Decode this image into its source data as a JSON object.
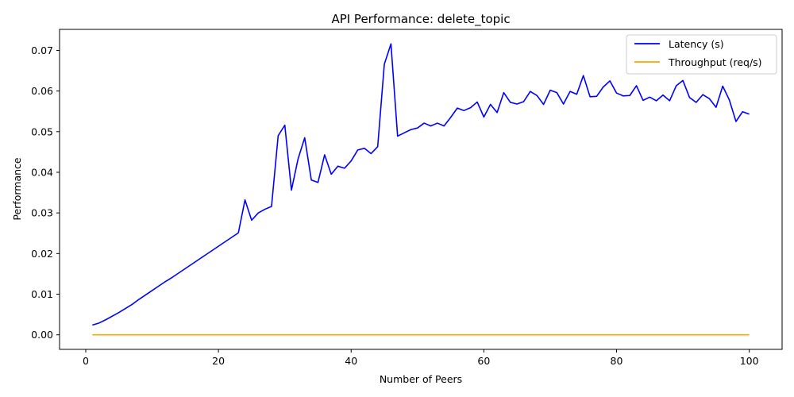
{
  "chart_data": {
    "type": "line",
    "title": "API Performance: delete_topic",
    "xlabel": "Number of Peers",
    "ylabel": "Performance",
    "xlim": [
      -3.95,
      104.95
    ],
    "ylim": [
      -0.00358,
      0.07517
    ],
    "xticks": [
      0,
      20,
      40,
      60,
      80,
      100
    ],
    "xtick_labels": [
      "0",
      "20",
      "40",
      "60",
      "80",
      "100"
    ],
    "yticks": [
      0.0,
      0.01,
      0.02,
      0.03,
      0.04,
      0.05,
      0.06,
      0.07
    ],
    "ytick_labels": [
      "0.00",
      "0.01",
      "0.02",
      "0.03",
      "0.04",
      "0.05",
      "0.06",
      "0.07"
    ],
    "grid": false,
    "legend": "top-right",
    "x": [
      1,
      2,
      3,
      4,
      5,
      6,
      7,
      8,
      9,
      10,
      11,
      12,
      13,
      14,
      15,
      16,
      17,
      18,
      19,
      20,
      21,
      22,
      23,
      24,
      25,
      26,
      27,
      28,
      29,
      30,
      31,
      32,
      33,
      34,
      35,
      36,
      37,
      38,
      39,
      40,
      41,
      42,
      43,
      44,
      45,
      46,
      47,
      48,
      49,
      50,
      51,
      52,
      53,
      54,
      55,
      56,
      57,
      58,
      59,
      60,
      61,
      62,
      63,
      64,
      65,
      66,
      67,
      68,
      69,
      70,
      71,
      72,
      73,
      74,
      75,
      76,
      77,
      78,
      79,
      80,
      81,
      82,
      83,
      84,
      85,
      86,
      87,
      88,
      89,
      90,
      91,
      92,
      93,
      94,
      95,
      96,
      97,
      98,
      99,
      100
    ],
    "series": [
      {
        "name": "Latency (s)",
        "color": "#0000ff",
        "values": [
          0.0024,
          0.0029,
          0.0037,
          0.0046,
          0.0055,
          0.0065,
          0.0075,
          0.0087,
          0.0098,
          0.0109,
          0.012,
          0.0131,
          0.0141,
          0.0152,
          0.0163,
          0.0174,
          0.0185,
          0.0196,
          0.0207,
          0.0218,
          0.0229,
          0.024,
          0.0251,
          0.0332,
          0.0282,
          0.03,
          0.0309,
          0.0316,
          0.049,
          0.0516,
          0.0356,
          0.0433,
          0.0485,
          0.0381,
          0.0375,
          0.0443,
          0.0395,
          0.0415,
          0.041,
          0.0428,
          0.0455,
          0.0459,
          0.0446,
          0.0463,
          0.0666,
          0.0716,
          0.0489,
          0.0497,
          0.0505,
          0.0509,
          0.0521,
          0.0514,
          0.0521,
          0.0514,
          0.0535,
          0.0558,
          0.0552,
          0.0559,
          0.0573,
          0.0536,
          0.0567,
          0.0547,
          0.0596,
          0.0572,
          0.0568,
          0.0574,
          0.0599,
          0.0589,
          0.0567,
          0.0602,
          0.0596,
          0.0568,
          0.0599,
          0.0592,
          0.0638,
          0.0586,
          0.0587,
          0.061,
          0.0625,
          0.0595,
          0.0588,
          0.0589,
          0.0613,
          0.0577,
          0.0585,
          0.0576,
          0.059,
          0.0576,
          0.0613,
          0.0626,
          0.0584,
          0.0572,
          0.0591,
          0.0581,
          0.056,
          0.0612,
          0.0578,
          0.0525,
          0.0549,
          0.0543
        ]
      },
      {
        "name": "Throughput (req/s)",
        "color": "#ffa500",
        "values": [
          0,
          0,
          0,
          0,
          0,
          0,
          0,
          0,
          0,
          0,
          0,
          0,
          0,
          0,
          0,
          0,
          0,
          0,
          0,
          0,
          0,
          0,
          0,
          0,
          0,
          0,
          0,
          0,
          0,
          0,
          0,
          0,
          0,
          0,
          0,
          0,
          0,
          0,
          0,
          0,
          0,
          0,
          0,
          0,
          0,
          0,
          0,
          0,
          0,
          0,
          0,
          0,
          0,
          0,
          0,
          0,
          0,
          0,
          0,
          0,
          0,
          0,
          0,
          0,
          0,
          0,
          0,
          0,
          0,
          0,
          0,
          0,
          0,
          0,
          0,
          0,
          0,
          0,
          0,
          0,
          0,
          0,
          0,
          0,
          0,
          0,
          0,
          0,
          0,
          0,
          0,
          0,
          0,
          0,
          0,
          0,
          0,
          0,
          0,
          0
        ]
      }
    ]
  }
}
